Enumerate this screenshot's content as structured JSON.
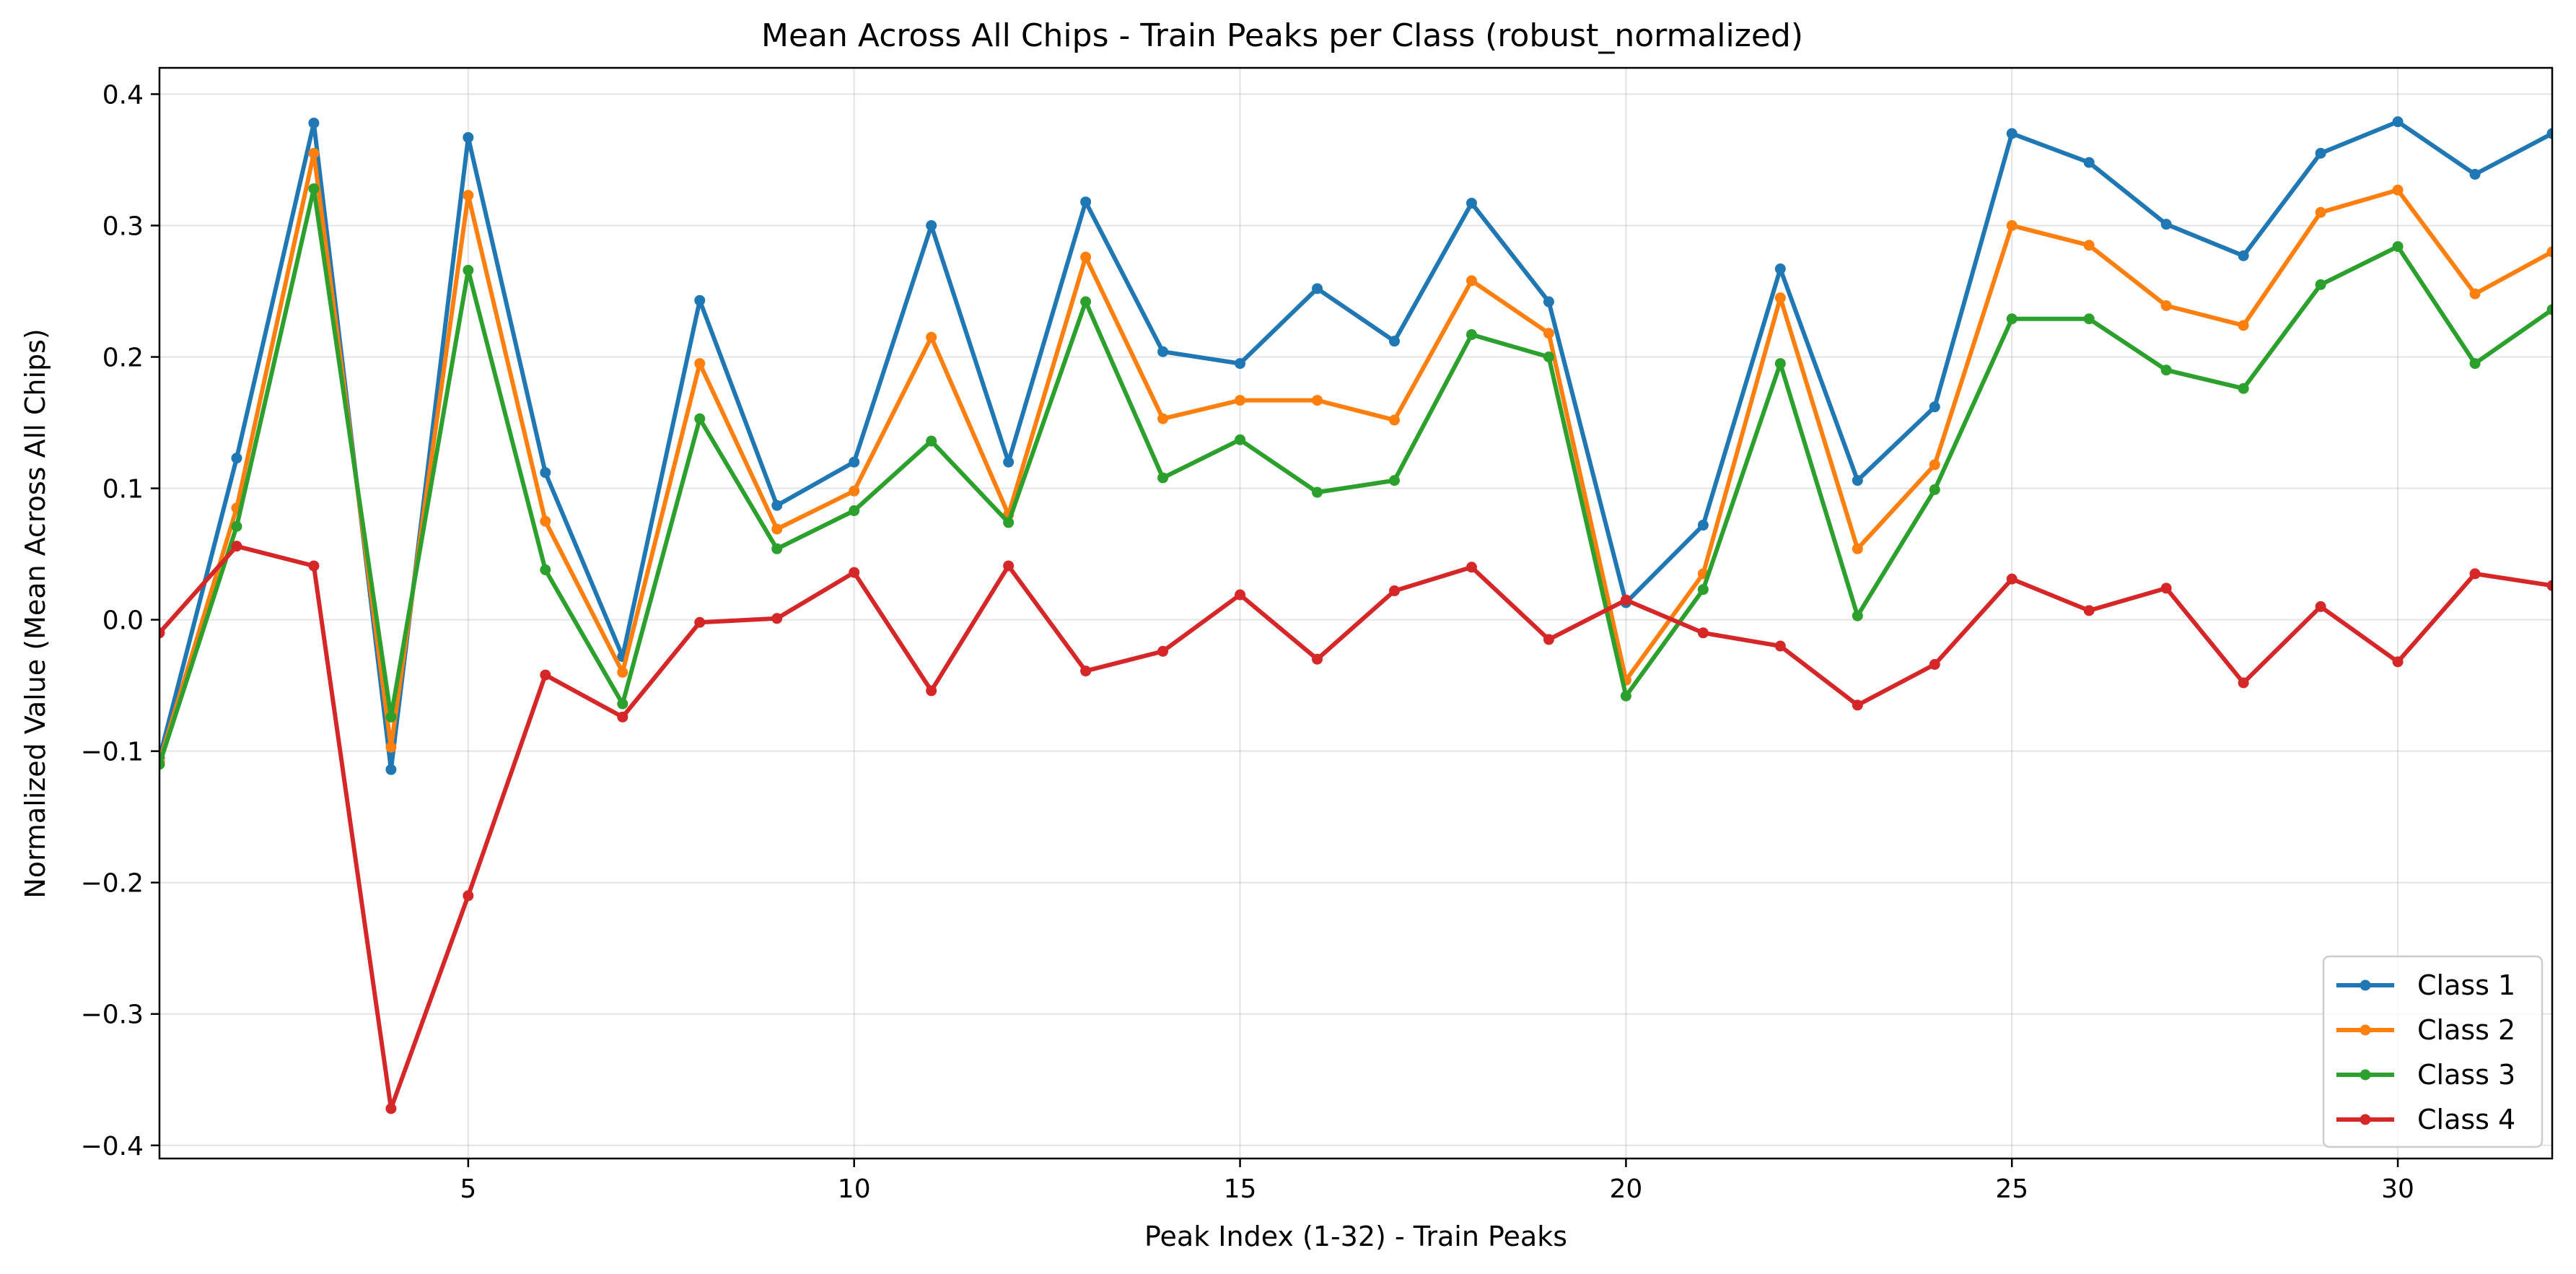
{
  "chart_data": {
    "type": "line",
    "title": "Mean Across All Chips - Train Peaks per Class (robust_normalized)",
    "xlabel": "Peak Index (1-32) - Train Peaks",
    "ylabel": "Normalized Value (Mean Across All Chips)",
    "xlim": [
      1,
      32
    ],
    "ylim": [
      -0.41,
      0.42
    ],
    "xticks": [
      5,
      10,
      15,
      20,
      25,
      30
    ],
    "yticks": [
      -0.4,
      -0.3,
      -0.2,
      -0.1,
      0.0,
      0.1,
      0.2,
      0.3,
      0.4
    ],
    "ytick_labels": [
      "−0.4",
      "−0.3",
      "−0.2",
      "−0.1",
      "0.0",
      "0.1",
      "0.2",
      "0.3",
      "0.4"
    ],
    "grid": true,
    "legend_position": "lower-right",
    "x": [
      1,
      2,
      3,
      4,
      5,
      6,
      7,
      8,
      9,
      10,
      11,
      12,
      13,
      14,
      15,
      16,
      17,
      18,
      19,
      20,
      21,
      22,
      23,
      24,
      25,
      26,
      27,
      28,
      29,
      30,
      31,
      32
    ],
    "series": [
      {
        "name": "Class 1",
        "color": "#1f77b4",
        "values": [
          -0.105,
          0.123,
          0.378,
          -0.114,
          0.367,
          0.112,
          -0.028,
          0.243,
          0.087,
          0.12,
          0.3,
          0.12,
          0.318,
          0.204,
          0.195,
          0.252,
          0.212,
          0.317,
          0.242,
          0.013,
          0.072,
          0.267,
          0.106,
          0.162,
          0.37,
          0.348,
          0.301,
          0.277,
          0.355,
          0.379,
          0.339,
          0.37
        ]
      },
      {
        "name": "Class 2",
        "color": "#ff7f0e",
        "values": [
          -0.108,
          0.085,
          0.355,
          -0.097,
          0.323,
          0.075,
          -0.04,
          0.195,
          0.069,
          0.098,
          0.215,
          0.08,
          0.276,
          0.153,
          0.167,
          0.167,
          0.152,
          0.258,
          0.218,
          -0.046,
          0.035,
          0.245,
          0.054,
          0.118,
          0.3,
          0.285,
          0.239,
          0.224,
          0.31,
          0.327,
          0.248,
          0.28
        ]
      },
      {
        "name": "Class 3",
        "color": "#2ca02c",
        "values": [
          -0.11,
          0.071,
          0.328,
          -0.074,
          0.266,
          0.038,
          -0.064,
          0.153,
          0.054,
          0.083,
          0.136,
          0.074,
          0.242,
          0.108,
          0.137,
          0.097,
          0.106,
          0.217,
          0.2,
          -0.058,
          0.023,
          0.195,
          0.003,
          0.099,
          0.229,
          0.229,
          0.19,
          0.176,
          0.255,
          0.284,
          0.195,
          0.236
        ]
      },
      {
        "name": "Class 4",
        "color": "#d62728",
        "values": [
          -0.01,
          0.056,
          0.041,
          -0.372,
          -0.21,
          -0.042,
          -0.074,
          -0.002,
          0.001,
          0.036,
          -0.054,
          0.041,
          -0.039,
          -0.024,
          0.019,
          -0.03,
          0.022,
          0.04,
          -0.015,
          0.015,
          -0.01,
          -0.02,
          -0.065,
          -0.034,
          0.031,
          0.007,
          0.024,
          -0.048,
          0.01,
          -0.032,
          0.035,
          0.026
        ]
      }
    ]
  }
}
